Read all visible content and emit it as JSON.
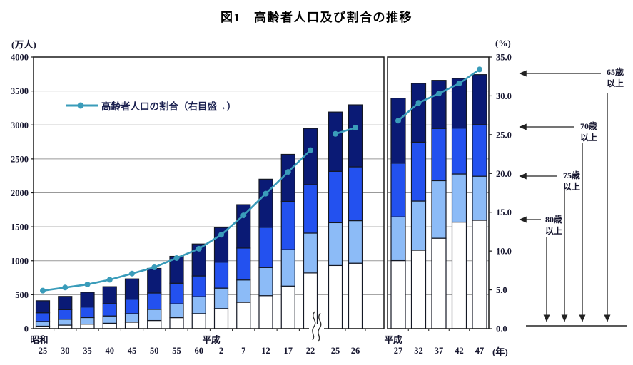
{
  "title": "図1　高齢者人口及び割合の推移",
  "axes": {
    "left_unit": "(万人)",
    "right_unit": "(%)",
    "year_unit": "(年)",
    "left_ticks": [
      "4000",
      "3500",
      "3000",
      "2500",
      "2000",
      "1500",
      "1000",
      "500",
      "0"
    ],
    "right_ticks": [
      "35.0",
      "30.0",
      "25.0",
      "20.0",
      "15.0",
      "10.0",
      "5.0",
      "0.0"
    ]
  },
  "legend": {
    "label": "高齢者人口の割合（右目盛→）"
  },
  "age_annotations": [
    {
      "line1": "65歳",
      "line2": "以上"
    },
    {
      "line1": "70歳",
      "line2": "以上"
    },
    {
      "line1": "75歳",
      "line2": "以上"
    },
    {
      "line1": "80歳",
      "line2": "以上"
    }
  ],
  "colors": {
    "bar_65": "#0a1a75",
    "bar_70": "#2351ef",
    "bar_75": "#8cbbf7",
    "bar_80": "#ffffff",
    "bar_border": "#141824",
    "line": "#3a9cba",
    "grid": "#999999",
    "axis": "#1a1a1a"
  },
  "chart_data": {
    "type": "bar",
    "variant": "stacked bars (elderly population, cumulative age groups) with ratio line on right axis",
    "title": "図1　高齢者人口及び割合の推移",
    "left_axis": {
      "unit": "万人",
      "min": 0,
      "max": 4000,
      "tick_step": 500
    },
    "right_axis": {
      "unit": "%",
      "min": 0,
      "max": 35,
      "tick_step": 5
    },
    "stack_top_to_bottom": [
      "65歳以上(65〜69)",
      "70歳以上(70〜74)",
      "75歳以上(75〜79)",
      "80歳以上"
    ],
    "line_series_name": "高齢者人口の割合（右目盛→）",
    "note": "a65/a70/a75/a80 = population aged 65+/70+/75+/80+ in 万人 (bar total = a65); ratio = % of total population (line, right axis)",
    "panels": [
      {
        "name": "actual (昭和25〜平成26)",
        "era_labels": [
          "昭和",
          "平成"
        ],
        "axis_break_after_index": 12,
        "bars": [
          {
            "year": "25",
            "a65": 411,
            "a70": 234,
            "a75": 106,
            "a80": 37,
            "ratio": 4.9
          },
          {
            "year": "30",
            "a65": 475,
            "a70": 280,
            "a75": 139,
            "a80": 52,
            "ratio": 5.3
          },
          {
            "year": "35",
            "a65": 535,
            "a70": 319,
            "a75": 163,
            "a80": 67,
            "ratio": 5.7
          },
          {
            "year": "40",
            "a65": 618,
            "a70": 368,
            "a75": 187,
            "a80": 80,
            "ratio": 6.3
          },
          {
            "year": "45",
            "a65": 733,
            "a70": 434,
            "a75": 221,
            "a80": 95,
            "ratio": 7.1
          },
          {
            "year": "50",
            "a65": 887,
            "a70": 525,
            "a75": 284,
            "a80": 120,
            "ratio": 7.9
          },
          {
            "year": "55",
            "a65": 1065,
            "a70": 669,
            "a75": 366,
            "a80": 162,
            "ratio": 9.1
          },
          {
            "year": "60",
            "a65": 1247,
            "a70": 776,
            "a75": 471,
            "a80": 222,
            "ratio": 10.3
          },
          {
            "year": "2",
            "a65": 1489,
            "a70": 980,
            "a75": 597,
            "a80": 296,
            "ratio": 12.1
          },
          {
            "year": "7",
            "a65": 1826,
            "a70": 1187,
            "a75": 717,
            "a80": 388,
            "ratio": 14.6
          },
          {
            "year": "12",
            "a65": 2201,
            "a70": 1492,
            "a75": 900,
            "a80": 486,
            "ratio": 17.4
          },
          {
            "year": "17",
            "a65": 2567,
            "a70": 1874,
            "a75": 1164,
            "a80": 627,
            "ratio": 20.2
          },
          {
            "year": "22",
            "a65": 2948,
            "a70": 2121,
            "a75": 1407,
            "a80": 820,
            "ratio": 23.0
          },
          {
            "year": "25",
            "a65": 3190,
            "a70": 2317,
            "a75": 1560,
            "a80": 930,
            "ratio": 25.1
          },
          {
            "year": "26",
            "a65": 3296,
            "a70": 2383,
            "a75": 1590,
            "a80": 964,
            "ratio": 25.9
          }
        ]
      },
      {
        "name": "projection (平成27〜47)",
        "era_labels": [
          "平成"
        ],
        "bars": [
          {
            "year": "27",
            "a65": 3395,
            "a70": 2437,
            "a75": 1646,
            "a80": 1002,
            "ratio": 26.8
          },
          {
            "year": "32",
            "a65": 3612,
            "a70": 2746,
            "a75": 1879,
            "a80": 1155,
            "ratio": 29.1
          },
          {
            "year": "37",
            "a65": 3657,
            "a70": 2948,
            "a75": 2179,
            "a80": 1332,
            "ratio": 30.3
          },
          {
            "year": "42",
            "a65": 3685,
            "a70": 2954,
            "a75": 2278,
            "a80": 1569,
            "ratio": 31.6
          },
          {
            "year": "47",
            "a65": 3741,
            "a70": 3004,
            "a75": 2245,
            "a80": 1596,
            "ratio": 33.4
          }
        ]
      }
    ]
  }
}
